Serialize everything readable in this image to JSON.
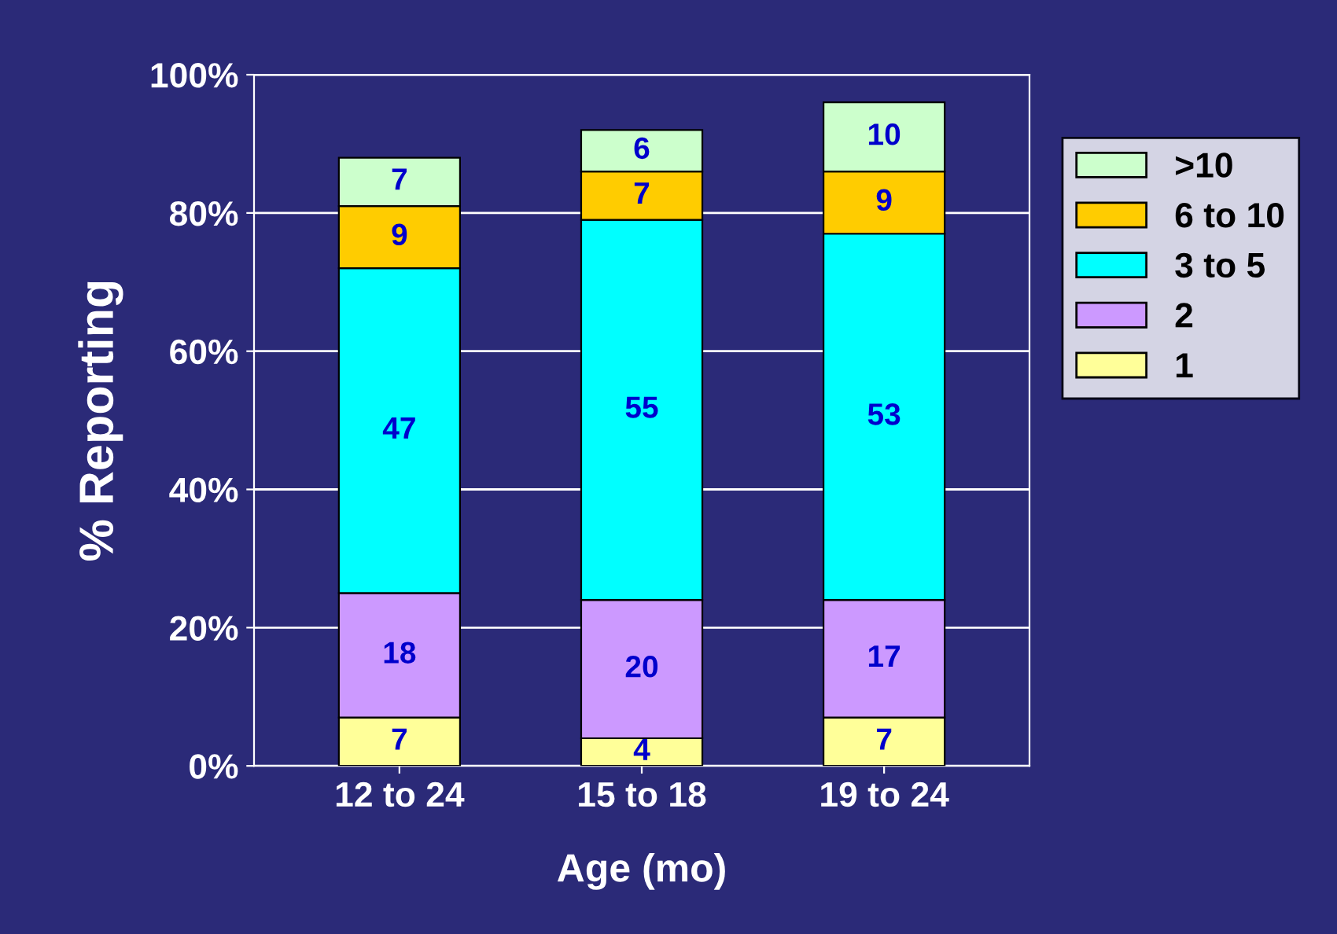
{
  "chart_data": {
    "type": "bar",
    "stacked": true,
    "xlabel": "Age (mo)",
    "ylabel": "% Reporting",
    "categories": [
      "12 to 24",
      "15 to 18",
      "19 to 24"
    ],
    "series": [
      {
        "name": "1",
        "color": "#ffff99",
        "values": [
          7,
          4,
          7
        ]
      },
      {
        "name": "2",
        "color": "#cc99ff",
        "values": [
          18,
          20,
          17
        ]
      },
      {
        "name": "3 to 5",
        "color": "#00ffff",
        "values": [
          47,
          55,
          53
        ]
      },
      {
        "name": "6 to 10",
        "color": "#ffcc00",
        "values": [
          9,
          7,
          9
        ]
      },
      {
        "name": ">10",
        "color": "#ccffcc",
        "values": [
          7,
          6,
          10
        ]
      }
    ],
    "ylim": [
      0,
      100
    ],
    "yticks": [
      {
        "value": 0,
        "label": "0%"
      },
      {
        "value": 20,
        "label": "20%"
      },
      {
        "value": 40,
        "label": "40%"
      },
      {
        "value": 60,
        "label": "60%"
      },
      {
        "value": 80,
        "label": "80%"
      },
      {
        "value": 100,
        "label": "100%"
      }
    ],
    "grid": "y",
    "legend": "right",
    "data_labels": true
  }
}
